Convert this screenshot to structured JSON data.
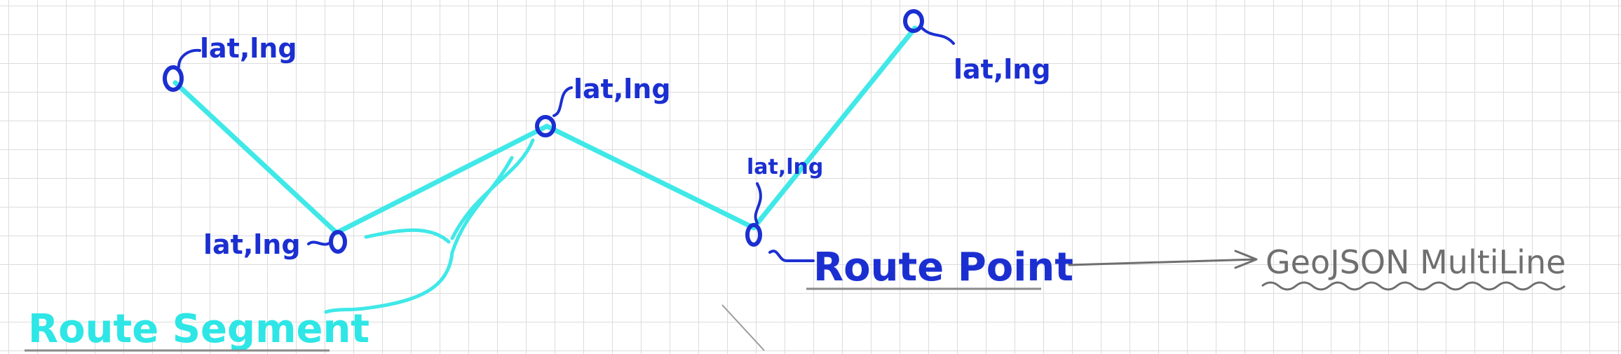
{
  "colors": {
    "route_line": "#40e8e8",
    "point_ink": "#1b2fd1",
    "segment_ink": "#2ee6e6",
    "note_ink": "#6f6f6f"
  },
  "labels": {
    "point_coord": "lat,lng",
    "route_point": "Route Point",
    "route_segment": "Route Segment",
    "geojson": "GeoJSON MultiLine"
  }
}
